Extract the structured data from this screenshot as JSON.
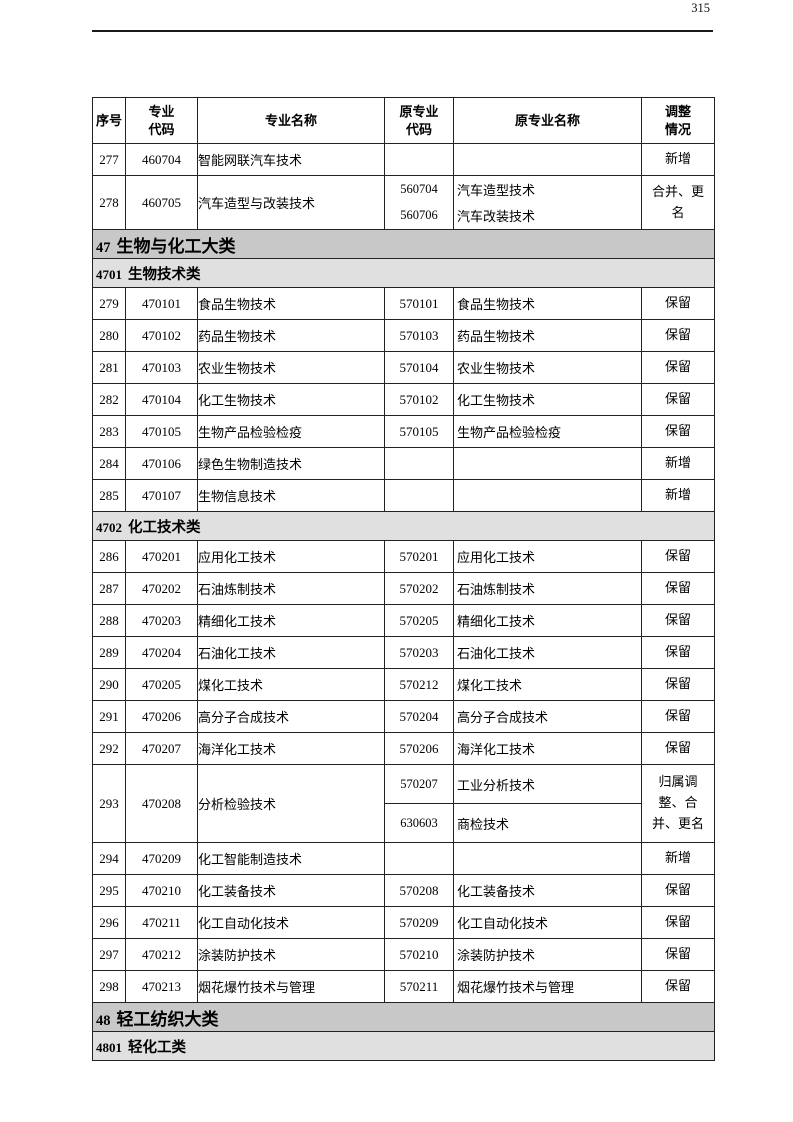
{
  "page": {
    "number": "315"
  },
  "colors": {
    "section_bg": "#c8c8c8",
    "subsection_bg": "#e0e0e0",
    "border": "#222222"
  },
  "table": {
    "columns": [
      {
        "id": "index",
        "label": "序号"
      },
      {
        "id": "code",
        "label": "专业\n代码"
      },
      {
        "id": "name",
        "label": "专业名称"
      },
      {
        "id": "old-code",
        "label": "原专业\n代码"
      },
      {
        "id": "old-name",
        "label": "原专业名称"
      },
      {
        "id": "adjustment",
        "label": "调整\n情况"
      }
    ],
    "rows": [
      {
        "type": "data",
        "index": "277",
        "code": "460704",
        "name": "智能网联汽车技术",
        "old": [],
        "adjustment": "新增"
      },
      {
        "type": "data",
        "index": "278",
        "code": "460705",
        "name": "汽车造型与改装技术",
        "old": [
          {
            "code": "560704",
            "name": "汽车造型技术"
          },
          {
            "code": "560706",
            "name": "汽车改装技术"
          }
        ],
        "split": false,
        "adjustment": "合并、更\n名"
      },
      {
        "type": "section",
        "num": "47",
        "label": "生物与化工大类"
      },
      {
        "type": "subsection",
        "num": "4701",
        "label": "生物技术类"
      },
      {
        "type": "data",
        "index": "279",
        "code": "470101",
        "name": "食品生物技术",
        "old": [
          {
            "code": "570101",
            "name": "食品生物技术"
          }
        ],
        "adjustment": "保留"
      },
      {
        "type": "data",
        "index": "280",
        "code": "470102",
        "name": "药品生物技术",
        "old": [
          {
            "code": "570103",
            "name": "药品生物技术"
          }
        ],
        "adjustment": "保留"
      },
      {
        "type": "data",
        "index": "281",
        "code": "470103",
        "name": "农业生物技术",
        "old": [
          {
            "code": "570104",
            "name": "农业生物技术"
          }
        ],
        "adjustment": "保留"
      },
      {
        "type": "data",
        "index": "282",
        "code": "470104",
        "name": "化工生物技术",
        "old": [
          {
            "code": "570102",
            "name": "化工生物技术"
          }
        ],
        "adjustment": "保留"
      },
      {
        "type": "data",
        "index": "283",
        "code": "470105",
        "name": "生物产品检验检疫",
        "old": [
          {
            "code": "570105",
            "name": "生物产品检验检疫"
          }
        ],
        "adjustment": "保留"
      },
      {
        "type": "data",
        "index": "284",
        "code": "470106",
        "name": "绿色生物制造技术",
        "old": [],
        "adjustment": "新增"
      },
      {
        "type": "data",
        "index": "285",
        "code": "470107",
        "name": "生物信息技术",
        "old": [],
        "adjustment": "新增"
      },
      {
        "type": "subsection",
        "num": "4702",
        "label": "化工技术类"
      },
      {
        "type": "data",
        "index": "286",
        "code": "470201",
        "name": "应用化工技术",
        "old": [
          {
            "code": "570201",
            "name": "应用化工技术"
          }
        ],
        "adjustment": "保留"
      },
      {
        "type": "data",
        "index": "287",
        "code": "470202",
        "name": "石油炼制技术",
        "old": [
          {
            "code": "570202",
            "name": "石油炼制技术"
          }
        ],
        "adjustment": "保留"
      },
      {
        "type": "data",
        "index": "288",
        "code": "470203",
        "name": "精细化工技术",
        "old": [
          {
            "code": "570205",
            "name": "精细化工技术"
          }
        ],
        "adjustment": "保留"
      },
      {
        "type": "data",
        "index": "289",
        "code": "470204",
        "name": "石油化工技术",
        "old": [
          {
            "code": "570203",
            "name": "石油化工技术"
          }
        ],
        "adjustment": "保留"
      },
      {
        "type": "data",
        "index": "290",
        "code": "470205",
        "name": "煤化工技术",
        "old": [
          {
            "code": "570212",
            "name": "煤化工技术"
          }
        ],
        "adjustment": "保留"
      },
      {
        "type": "data",
        "index": "291",
        "code": "470206",
        "name": "高分子合成技术",
        "old": [
          {
            "code": "570204",
            "name": "高分子合成技术"
          }
        ],
        "adjustment": "保留"
      },
      {
        "type": "data",
        "index": "292",
        "code": "470207",
        "name": "海洋化工技术",
        "old": [
          {
            "code": "570206",
            "name": "海洋化工技术"
          }
        ],
        "adjustment": "保留"
      },
      {
        "type": "data",
        "index": "293",
        "code": "470208",
        "name": "分析检验技术",
        "old": [
          {
            "code": "570207",
            "name": "工业分析技术"
          },
          {
            "code": "630603",
            "name": "商检技术"
          }
        ],
        "split": true,
        "adjustment": "归属调\n整、合\n并、更名"
      },
      {
        "type": "data",
        "index": "294",
        "code": "470209",
        "name": "化工智能制造技术",
        "old": [],
        "adjustment": "新增"
      },
      {
        "type": "data",
        "index": "295",
        "code": "470210",
        "name": "化工装备技术",
        "old": [
          {
            "code": "570208",
            "name": "化工装备技术"
          }
        ],
        "adjustment": "保留"
      },
      {
        "type": "data",
        "index": "296",
        "code": "470211",
        "name": "化工自动化技术",
        "old": [
          {
            "code": "570209",
            "name": "化工自动化技术"
          }
        ],
        "adjustment": "保留"
      },
      {
        "type": "data",
        "index": "297",
        "code": "470212",
        "name": "涂装防护技术",
        "old": [
          {
            "code": "570210",
            "name": "涂装防护技术"
          }
        ],
        "adjustment": "保留"
      },
      {
        "type": "data",
        "index": "298",
        "code": "470213",
        "name": "烟花爆竹技术与管理",
        "old": [
          {
            "code": "570211",
            "name": "烟花爆竹技术与管理"
          }
        ],
        "adjustment": "保留"
      },
      {
        "type": "section",
        "num": "48",
        "label": "轻工纺织大类"
      },
      {
        "type": "subsection",
        "num": "4801",
        "label": "轻化工类"
      }
    ]
  }
}
